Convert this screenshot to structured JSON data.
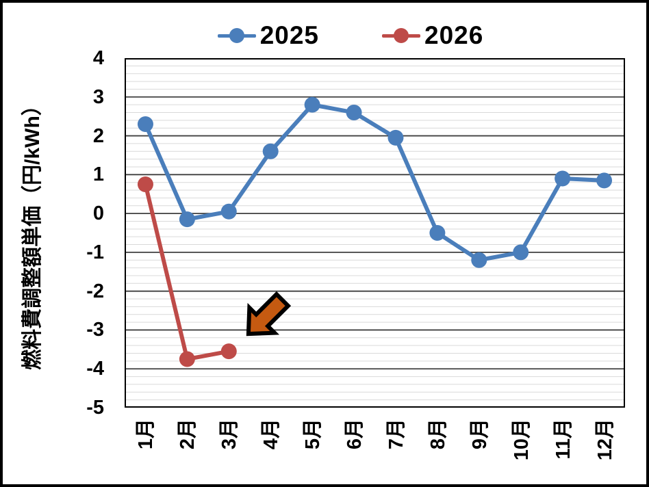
{
  "chart_data": {
    "type": "line",
    "title": "",
    "ylabel": "燃料費調整額単価（円/kWh）",
    "xlabel": "",
    "categories": [
      "1月",
      "2月",
      "3月",
      "4月",
      "5月",
      "6月",
      "7月",
      "8月",
      "9月",
      "10月",
      "11月",
      "12月"
    ],
    "y_ticks": [
      "4",
      "3",
      "2",
      "1",
      "0",
      "-1",
      "-2",
      "-3",
      "-4",
      "-5"
    ],
    "ylim": [
      -5,
      4
    ],
    "y_major_step": 1,
    "y_minor_step": 0.2,
    "grid": "horizontal major+minor",
    "legend_position": "top-center",
    "series": [
      {
        "name": "2025",
        "color": "#4a7ebb",
        "values": [
          2.3,
          -0.15,
          0.05,
          1.6,
          2.8,
          2.6,
          1.95,
          -0.5,
          -1.2,
          -1.0,
          0.9,
          0.85
        ]
      },
      {
        "name": "2026",
        "color": "#be4b48",
        "values": [
          0.75,
          -3.75,
          -3.55,
          null,
          null,
          null,
          null,
          null,
          null,
          null,
          null,
          null
        ]
      }
    ],
    "annotation": {
      "shape": "block-arrow",
      "direction": "down-left",
      "fill": "#c55a11",
      "outline": "#000000",
      "tip_month_index": 2.47,
      "tip_value": -3.1
    }
  },
  "colors": {
    "background": "#ffffff",
    "frame_border": "#000000",
    "plot_border": "#000000",
    "major_grid": "#3f3f3f",
    "minor_grid": "#d9d9d9",
    "text": "#000000"
  }
}
